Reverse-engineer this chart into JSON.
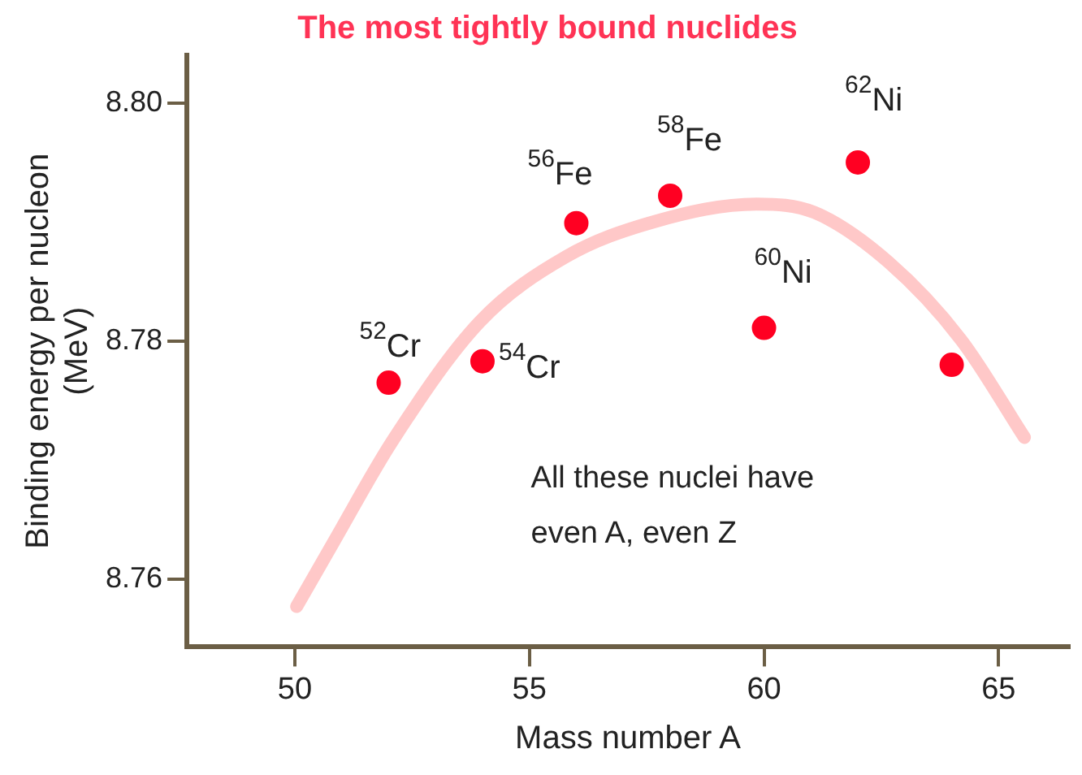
{
  "chart_data": {
    "type": "scatter",
    "title": "The most tightly bound nuclides",
    "xlabel": "Mass number A",
    "ylabel": "Binding energy per nucleon\n(MeV)",
    "xlim": [
      47.7,
      66.5
    ],
    "xticks": [
      50,
      55,
      60,
      65
    ],
    "ylim": [
      8.7543,
      8.804
    ],
    "yticks": [
      {
        "value": 8.76,
        "label": "8.76"
      },
      {
        "value": 8.78,
        "label": "8.78"
      },
      {
        "value": 8.8,
        "label": "8.80"
      }
    ],
    "grid": false,
    "legend": false,
    "marker": "circle",
    "series": [
      {
        "type": "line",
        "color": "#ffc8c8",
        "marker": "none",
        "x": [
          50.04,
          50.84,
          52.08,
          53.94,
          55.79,
          57.64,
          59.84,
          61.07,
          62.66,
          64.2,
          65.55
        ],
        "values": [
          8.7577,
          8.7632,
          8.7716,
          8.7816,
          8.7871,
          8.79,
          8.7915,
          8.7908,
          8.7866,
          8.7801,
          8.7719
        ]
      },
      {
        "type": "scatter",
        "color": "#ff0022",
        "x": [
          52,
          54,
          56,
          58,
          60,
          62,
          64
        ],
        "values": [
          8.7765,
          8.7783,
          8.7899,
          8.7922,
          8.7811,
          8.795,
          8.778
        ]
      }
    ],
    "annotations": [
      {
        "text": "$^{52}$Cr",
        "x": 52,
        "y": 8.7765
      },
      {
        "text": "$^{54}$Cr",
        "x": 54,
        "y": 8.7783
      },
      {
        "text": "$^{56}$Fe",
        "x": 56,
        "y": 8.7899
      },
      {
        "text": "$^{58}$Fe",
        "x": 58,
        "y": 8.7922
      },
      {
        "text": "$^{60}$Ni",
        "x": 60,
        "y": 8.7811
      },
      {
        "text": "$^{62}$Ni",
        "x": 62,
        "y": 8.795
      },
      "All these nuclei have\neven A, even Z"
    ]
  }
}
